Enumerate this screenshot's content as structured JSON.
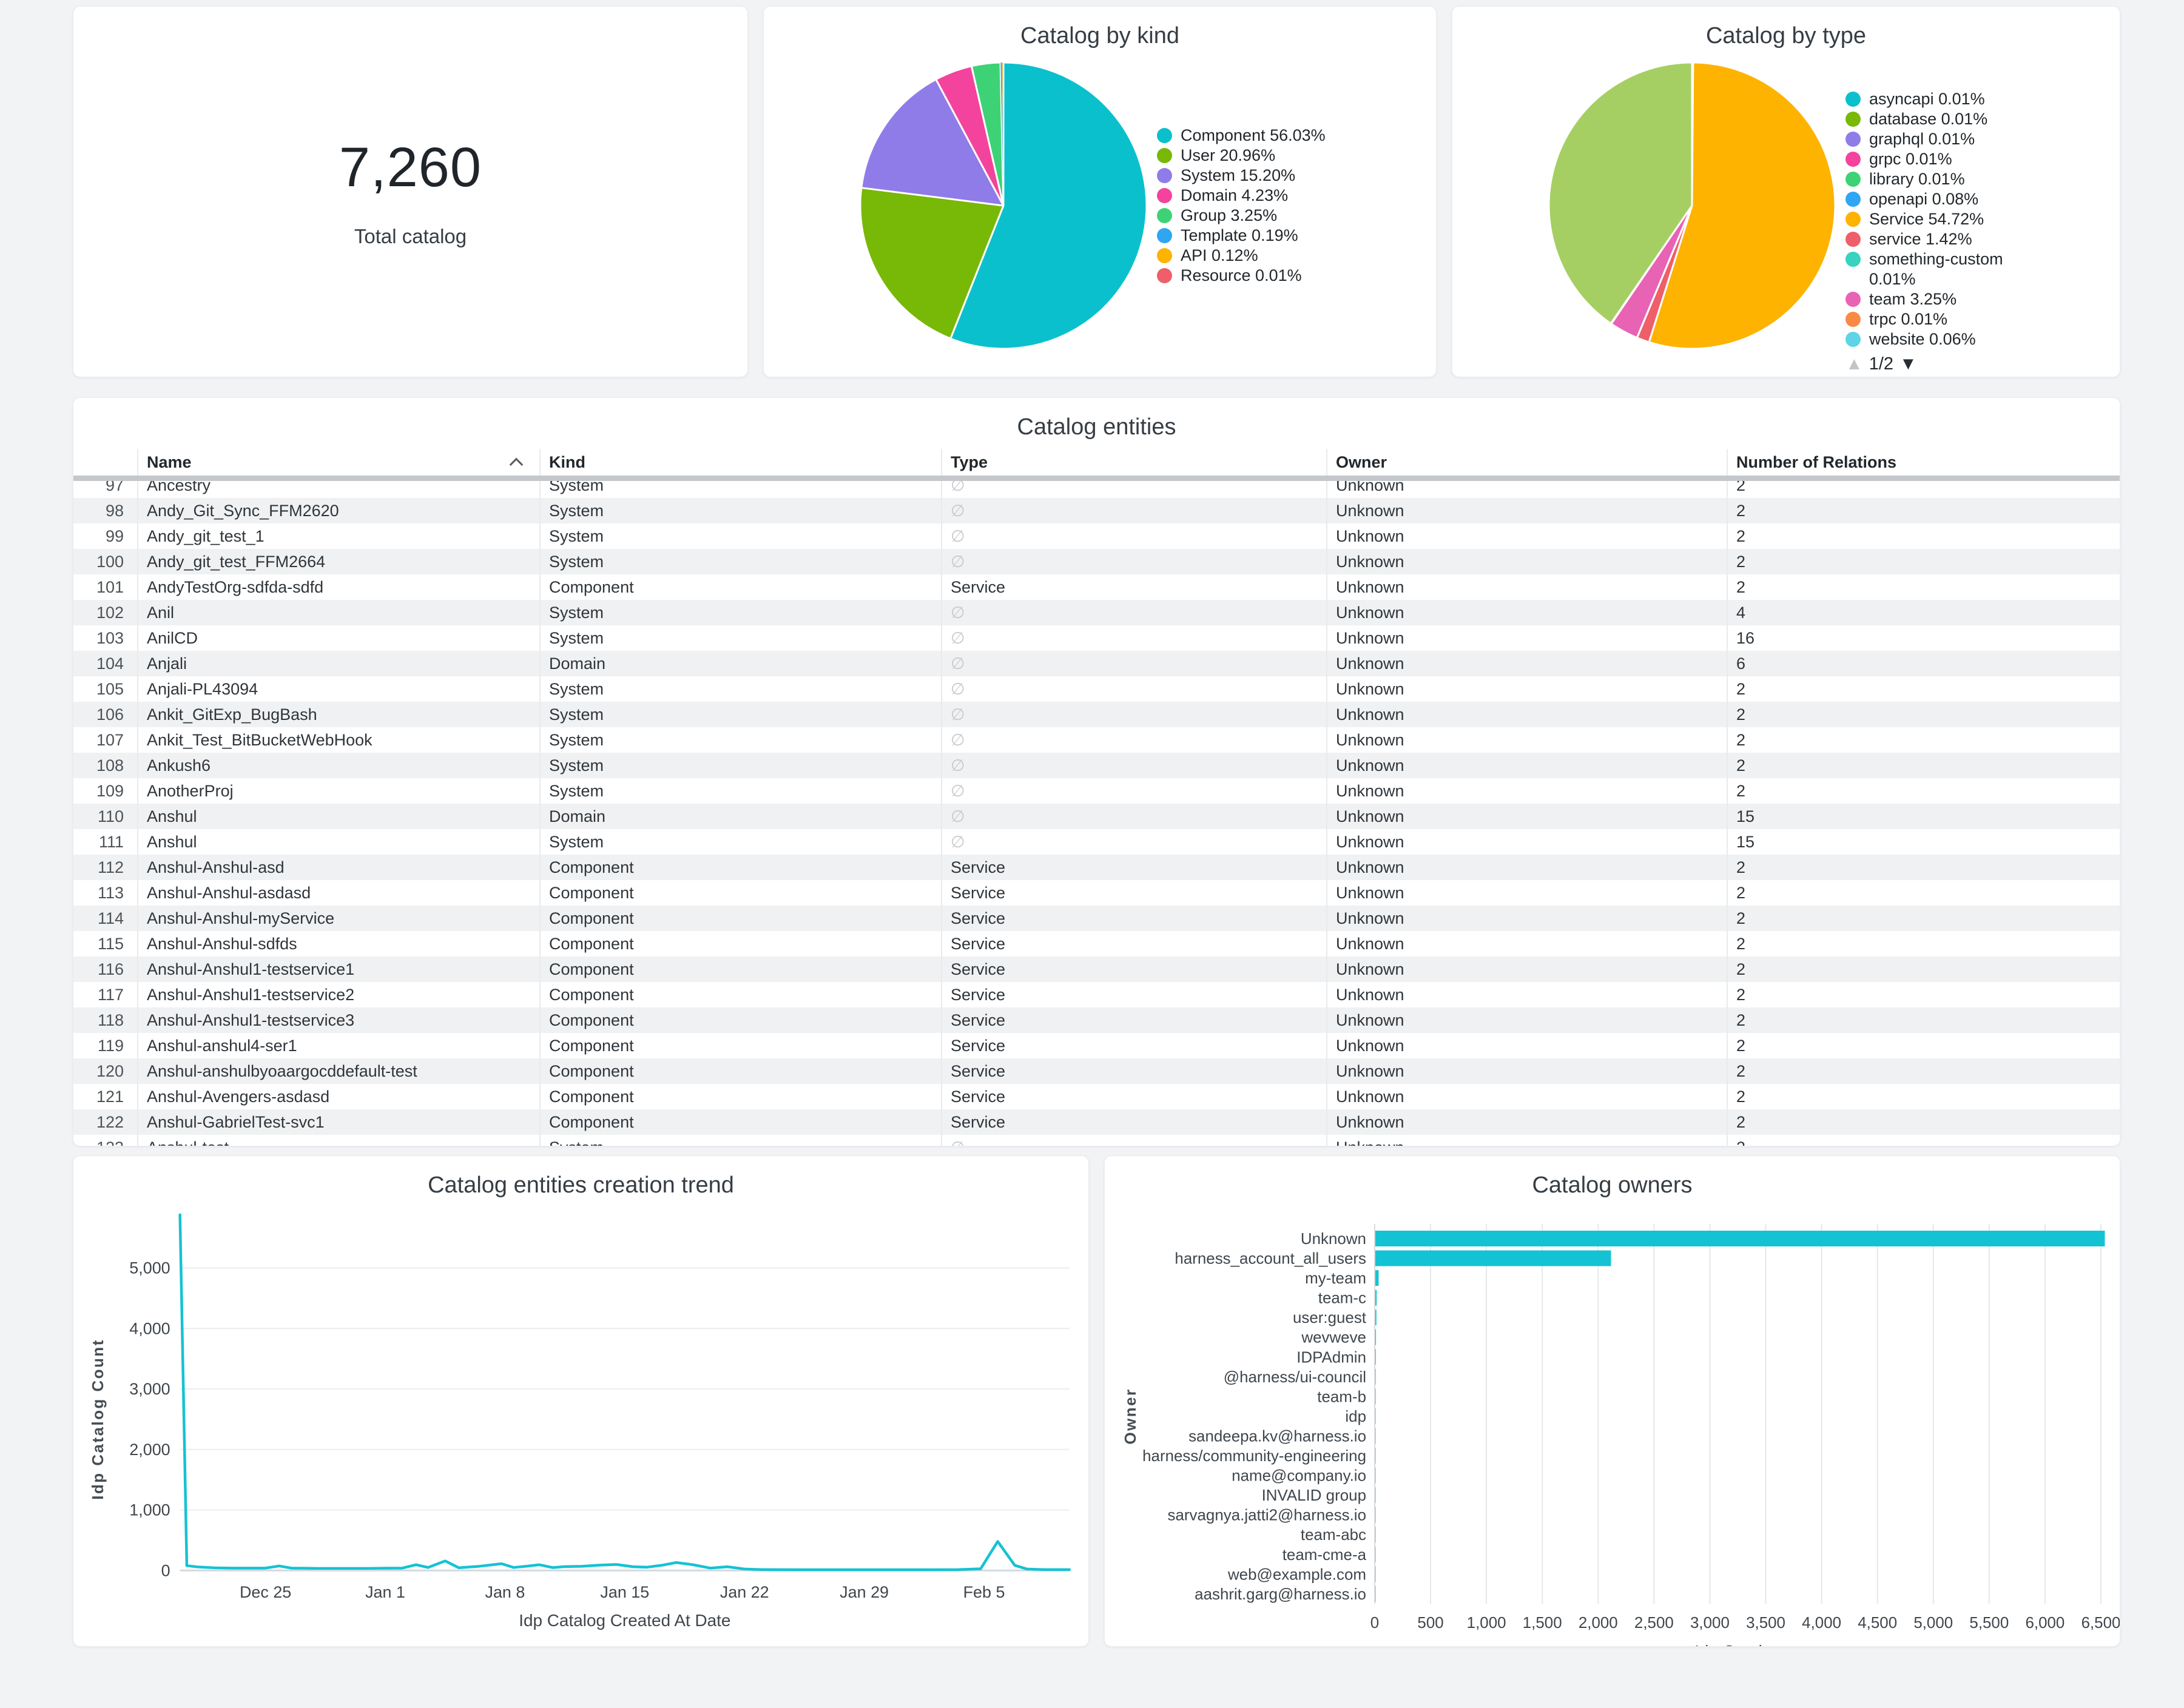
{
  "stat_card": {
    "value": "7,260",
    "label": "Total catalog"
  },
  "pie_type": {
    "pagination": {
      "current": "1/2",
      "up_icon": "▲",
      "down_icon": "▼"
    }
  },
  "table": {
    "title": "Catalog entities",
    "columns": [
      "Name",
      "Kind",
      "Type",
      "Owner",
      "Number of Relations"
    ],
    "sort_column": "Name",
    "sort_direction": "ascending",
    "empty_type_glyph": "∅",
    "rows": [
      {
        "index": 97,
        "name": "Ancestry",
        "kind": "System",
        "type": null,
        "owner": "Unknown",
        "relations": "2"
      },
      {
        "index": 98,
        "name": "Andy_Git_Sync_FFM2620",
        "kind": "System",
        "type": null,
        "owner": "Unknown",
        "relations": "2"
      },
      {
        "index": 99,
        "name": "Andy_git_test_1",
        "kind": "System",
        "type": null,
        "owner": "Unknown",
        "relations": "2"
      },
      {
        "index": 100,
        "name": "Andy_git_test_FFM2664",
        "kind": "System",
        "type": null,
        "owner": "Unknown",
        "relations": "2"
      },
      {
        "index": 101,
        "name": "AndyTestOrg-sdfda-sdfd",
        "kind": "Component",
        "type": "Service",
        "owner": "Unknown",
        "relations": "2"
      },
      {
        "index": 102,
        "name": "Anil",
        "kind": "System",
        "type": null,
        "owner": "Unknown",
        "relations": "4"
      },
      {
        "index": 103,
        "name": "AnilCD",
        "kind": "System",
        "type": null,
        "owner": "Unknown",
        "relations": "16"
      },
      {
        "index": 104,
        "name": "Anjali",
        "kind": "Domain",
        "type": null,
        "owner": "Unknown",
        "relations": "6"
      },
      {
        "index": 105,
        "name": "Anjali-PL43094",
        "kind": "System",
        "type": null,
        "owner": "Unknown",
        "relations": "2"
      },
      {
        "index": 106,
        "name": "Ankit_GitExp_BugBash",
        "kind": "System",
        "type": null,
        "owner": "Unknown",
        "relations": "2"
      },
      {
        "index": 107,
        "name": "Ankit_Test_BitBucketWebHook",
        "kind": "System",
        "type": null,
        "owner": "Unknown",
        "relations": "2"
      },
      {
        "index": 108,
        "name": "Ankush6",
        "kind": "System",
        "type": null,
        "owner": "Unknown",
        "relations": "2"
      },
      {
        "index": 109,
        "name": "AnotherProj",
        "kind": "System",
        "type": null,
        "owner": "Unknown",
        "relations": "2"
      },
      {
        "index": 110,
        "name": "Anshul",
        "kind": "Domain",
        "type": null,
        "owner": "Unknown",
        "relations": "15"
      },
      {
        "index": 111,
        "name": "Anshul",
        "kind": "System",
        "type": null,
        "owner": "Unknown",
        "relations": "15"
      },
      {
        "index": 112,
        "name": "Anshul-Anshul-asd",
        "kind": "Component",
        "type": "Service",
        "owner": "Unknown",
        "relations": "2"
      },
      {
        "index": 113,
        "name": "Anshul-Anshul-asdasd",
        "kind": "Component",
        "type": "Service",
        "owner": "Unknown",
        "relations": "2"
      },
      {
        "index": 114,
        "name": "Anshul-Anshul-myService",
        "kind": "Component",
        "type": "Service",
        "owner": "Unknown",
        "relations": "2"
      },
      {
        "index": 115,
        "name": "Anshul-Anshul-sdfds",
        "kind": "Component",
        "type": "Service",
        "owner": "Unknown",
        "relations": "2"
      },
      {
        "index": 116,
        "name": "Anshul-Anshul1-testservice1",
        "kind": "Component",
        "type": "Service",
        "owner": "Unknown",
        "relations": "2"
      },
      {
        "index": 117,
        "name": "Anshul-Anshul1-testservice2",
        "kind": "Component",
        "type": "Service",
        "owner": "Unknown",
        "relations": "2"
      },
      {
        "index": 118,
        "name": "Anshul-Anshul1-testservice3",
        "kind": "Component",
        "type": "Service",
        "owner": "Unknown",
        "relations": "2"
      },
      {
        "index": 119,
        "name": "Anshul-anshul4-ser1",
        "kind": "Component",
        "type": "Service",
        "owner": "Unknown",
        "relations": "2"
      },
      {
        "index": 120,
        "name": "Anshul-anshulbyoaargocddefault-test",
        "kind": "Component",
        "type": "Service",
        "owner": "Unknown",
        "relations": "2"
      },
      {
        "index": 121,
        "name": "Anshul-Avengers-asdasd",
        "kind": "Component",
        "type": "Service",
        "owner": "Unknown",
        "relations": "2"
      },
      {
        "index": 122,
        "name": "Anshul-GabrielTest-svc1",
        "kind": "Component",
        "type": "Service",
        "owner": "Unknown",
        "relations": "2"
      },
      {
        "index": 123,
        "name": "Anshul-test",
        "kind": "System",
        "type": null,
        "owner": "Unknown",
        "relations": "2"
      }
    ]
  },
  "chart_data": [
    {
      "id": "pie-kind",
      "type": "pie",
      "title": "Catalog by kind",
      "legend_position": "right",
      "slices": [
        {
          "label": "Component",
          "pct": "56.03",
          "color": "#0bc0cd"
        },
        {
          "label": "User",
          "pct": "20.96",
          "color": "#78b806"
        },
        {
          "label": "System",
          "pct": "15.20",
          "color": "#8f7ce8"
        },
        {
          "label": "Domain",
          "pct": "4.23",
          "color": "#f4439c"
        },
        {
          "label": "Group",
          "pct": "3.25",
          "color": "#3ed276"
        },
        {
          "label": "Template",
          "pct": "0.19",
          "color": "#2ea6f2"
        },
        {
          "label": "API",
          "pct": "0.12",
          "color": "#feb301"
        },
        {
          "label": "Resource",
          "pct": "0.01",
          "color": "#ee5f69"
        }
      ]
    },
    {
      "id": "pie-type",
      "type": "pie",
      "title": "Catalog by type",
      "legend_position": "right",
      "legend_pagination": "1/2",
      "slices": [
        {
          "label": "asyncapi",
          "pct": "0.01",
          "color": "#0bc0cd"
        },
        {
          "label": "database",
          "pct": "0.01",
          "color": "#78b806"
        },
        {
          "label": "graphql",
          "pct": "0.01",
          "color": "#8f7ce8"
        },
        {
          "label": "grpc",
          "pct": "0.01",
          "color": "#f4439c"
        },
        {
          "label": "library",
          "pct": "0.01",
          "color": "#3ed276"
        },
        {
          "label": "openapi",
          "pct": "0.08",
          "color": "#2ea6f2"
        },
        {
          "label": "Service",
          "pct": "54.72",
          "color": "#feb301"
        },
        {
          "label": "service",
          "pct": "1.42",
          "color": "#ee5f69"
        },
        {
          "label": "something-custom",
          "pct": "0.01",
          "color": "#35d3c0"
        },
        {
          "label": "team",
          "pct": "3.25",
          "color": "#e863b4"
        },
        {
          "label": "trpc",
          "pct": "0.01",
          "color": "#f98a45"
        },
        {
          "label": "website",
          "pct": "0.06",
          "color": "#5fd4e6"
        }
      ],
      "remainder_slice": {
        "pct": "40.41",
        "color": "#a6cf63",
        "in_visible_legend": false
      }
    },
    {
      "id": "trend",
      "type": "line",
      "title": "Catalog entities creation trend",
      "xlabel": "Idp Catalog Created At Date",
      "ylabel": "Idp Catalog Count",
      "line_color": "#15c2d3",
      "grid": true,
      "ylim": [
        0,
        5900
      ],
      "yticks": [
        {
          "v": 0,
          "label": "0"
        },
        {
          "v": 1000,
          "label": "1,000"
        },
        {
          "v": 2000,
          "label": "2,000"
        },
        {
          "v": 3000,
          "label": "3,000"
        },
        {
          "v": 4000,
          "label": "4,000"
        },
        {
          "v": 5000,
          "label": "5,000"
        }
      ],
      "x_range_days": [
        0,
        52
      ],
      "xticks": [
        {
          "day": 5,
          "label": "Dec 25"
        },
        {
          "day": 12,
          "label": "Jan 1"
        },
        {
          "day": 19,
          "label": "Jan 8"
        },
        {
          "day": 26,
          "label": "Jan 15"
        },
        {
          "day": 33,
          "label": "Jan 22"
        },
        {
          "day": 40,
          "label": "Jan 29"
        },
        {
          "day": 47,
          "label": "Feb 5"
        }
      ],
      "points": [
        [
          0,
          5880
        ],
        [
          0.4,
          80
        ],
        [
          1,
          60
        ],
        [
          2,
          45
        ],
        [
          3,
          40
        ],
        [
          4,
          40
        ],
        [
          5,
          40
        ],
        [
          5.8,
          75
        ],
        [
          6.5,
          40
        ],
        [
          8,
          35
        ],
        [
          9,
          35
        ],
        [
          10,
          35
        ],
        [
          11,
          35
        ],
        [
          12,
          38
        ],
        [
          13,
          40
        ],
        [
          13.8,
          95
        ],
        [
          14.5,
          50
        ],
        [
          15.5,
          158
        ],
        [
          16.3,
          45
        ],
        [
          17.5,
          70
        ],
        [
          18.8,
          112
        ],
        [
          19.5,
          50
        ],
        [
          20.3,
          72
        ],
        [
          21,
          95
        ],
        [
          21.8,
          48
        ],
        [
          22.5,
          65
        ],
        [
          23.5,
          70
        ],
        [
          24.5,
          88
        ],
        [
          25.5,
          100
        ],
        [
          26.5,
          62
        ],
        [
          27.3,
          55
        ],
        [
          28.2,
          88
        ],
        [
          29,
          132
        ],
        [
          30,
          95
        ],
        [
          31,
          40
        ],
        [
          32,
          62
        ],
        [
          33,
          25
        ],
        [
          34,
          15
        ],
        [
          36,
          13
        ],
        [
          38,
          13
        ],
        [
          40,
          13
        ],
        [
          42,
          13
        ],
        [
          44,
          13
        ],
        [
          45.5,
          15
        ],
        [
          46.8,
          28
        ],
        [
          47.8,
          480
        ],
        [
          48.8,
          85
        ],
        [
          49.5,
          25
        ],
        [
          50.5,
          15
        ],
        [
          52,
          15
        ]
      ]
    },
    {
      "id": "owners",
      "type": "bar",
      "orientation": "horizontal",
      "title": "Catalog owners",
      "xlabel": "Idp Catalog",
      "ylabel": "Owner",
      "bar_color": "#13c3d3",
      "grid": true,
      "xlim": [
        0,
        6560
      ],
      "xticks": [
        {
          "v": 0,
          "label": "0"
        },
        {
          "v": 500,
          "label": "500"
        },
        {
          "v": 1000,
          "label": "1,000"
        },
        {
          "v": 1500,
          "label": "1,500"
        },
        {
          "v": 2000,
          "label": "2,000"
        },
        {
          "v": 2500,
          "label": "2,500"
        },
        {
          "v": 3000,
          "label": "3,000"
        },
        {
          "v": 3500,
          "label": "3,500"
        },
        {
          "v": 4000,
          "label": "4,000"
        },
        {
          "v": 4500,
          "label": "4,500"
        },
        {
          "v": 5000,
          "label": "5,000"
        },
        {
          "v": 5500,
          "label": "5,500"
        },
        {
          "v": 6000,
          "label": "6,000"
        },
        {
          "v": 6500,
          "label": "6,500"
        }
      ],
      "categories": [
        "Unknown",
        "harness_account_all_users",
        "my-team",
        "team-c",
        "user:guest",
        "wevweve",
        "IDPAdmin",
        "@harness/ui-council",
        "team-b",
        "idp",
        "sandeepa.kv@harness.io",
        "harness/community-engineering",
        "name@company.io",
        "INVALID group",
        "sarvagnya.jatti2@harness.io",
        "team-abc",
        "team-cme-a",
        "web@example.com",
        "aashrit.garg@harness.io"
      ],
      "values": [
        6530,
        2110,
        30,
        12,
        10,
        6,
        5,
        4,
        4,
        3,
        3,
        2,
        2,
        2,
        2,
        2,
        1,
        1,
        1
      ]
    }
  ]
}
